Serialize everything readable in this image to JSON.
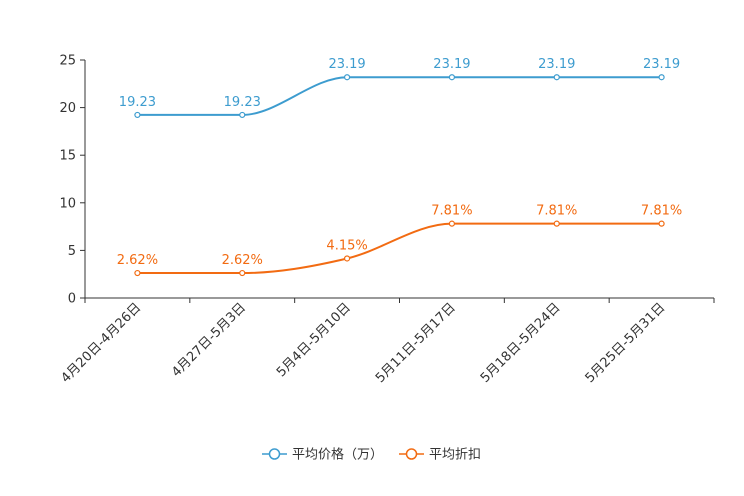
{
  "chart_data": {
    "type": "line",
    "categories": [
      "4月20日-4月26日",
      "4月27日-5月3日",
      "5月4日-5月10日",
      "5月11日-5月17日",
      "5月18日-5月24日",
      "5月25日-5月31日"
    ],
    "ylim": [
      0,
      25
    ],
    "yticks": [
      0,
      5,
      10,
      15,
      20,
      25
    ],
    "ytick_labels": [
      "0",
      "5",
      "10",
      "15",
      "20",
      "25"
    ],
    "series": [
      {
        "name": "平均价格（万）",
        "color": "#3d9ccf",
        "values": [
          19.23,
          19.23,
          23.19,
          23.19,
          23.19,
          23.19
        ],
        "labels": [
          "19.23",
          "19.23",
          "23.19",
          "23.19",
          "23.19",
          "23.19"
        ]
      },
      {
        "name": "平均折扣",
        "color": "#f26b12",
        "values": [
          2.62,
          2.62,
          4.15,
          7.81,
          7.81,
          7.81
        ],
        "labels": [
          "2.62%",
          "2.62%",
          "4.15%",
          "7.81%",
          "7.81%",
          "7.81%"
        ]
      }
    ],
    "legend_position": "bottom-center",
    "grid": false
  }
}
